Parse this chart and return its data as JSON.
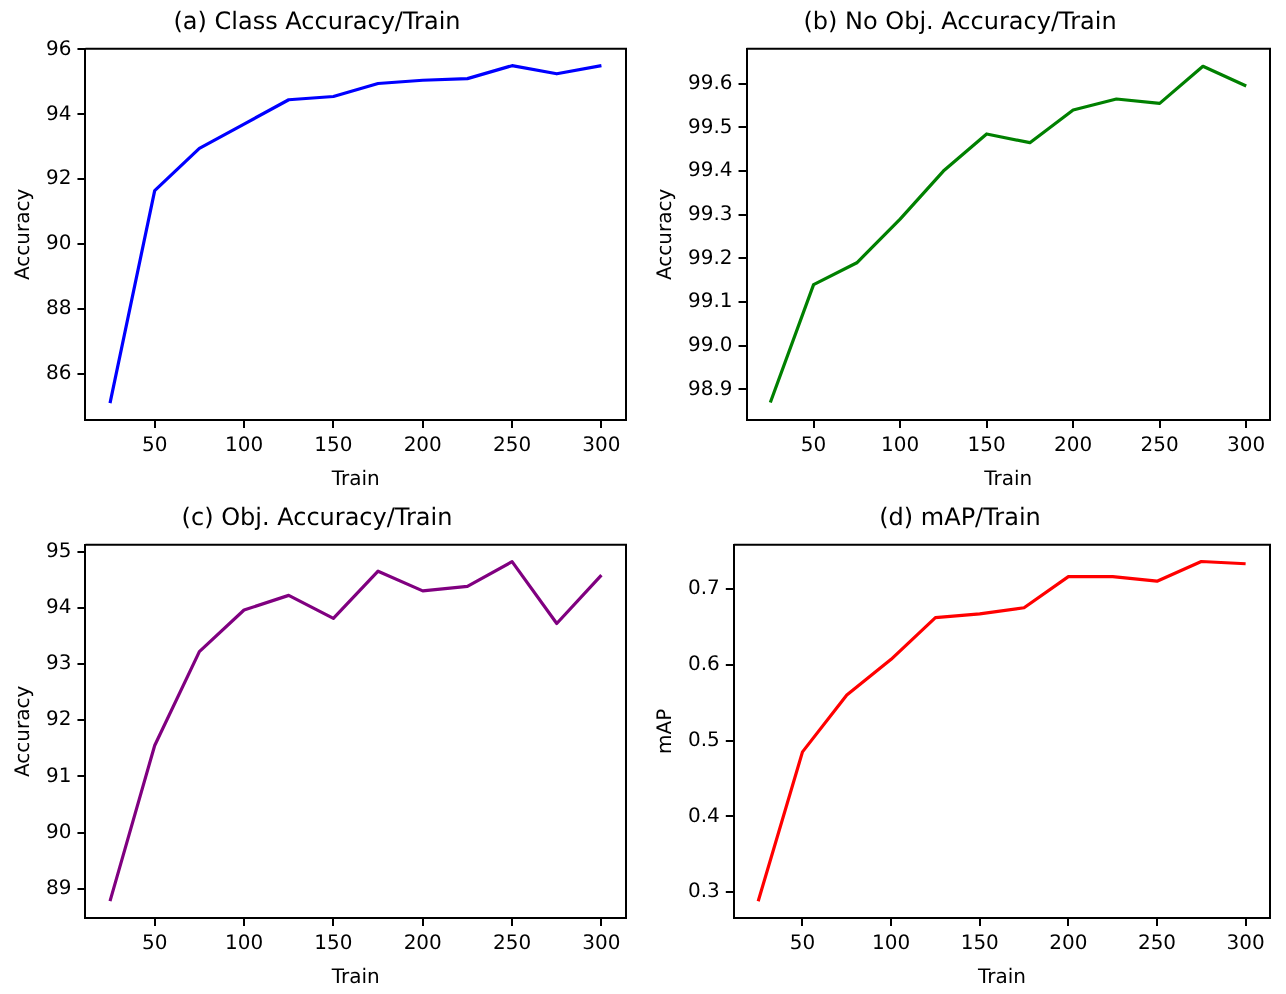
{
  "chart_data": [
    {
      "type": "line",
      "title": "(a) Class Accuracy/Train",
      "xlabel": "Train",
      "ylabel": "Accuracy",
      "x": [
        25,
        50,
        75,
        100,
        125,
        150,
        175,
        200,
        225,
        250,
        275,
        300
      ],
      "series": [
        {
          "color": "#0000ff",
          "values": [
            85.1,
            91.65,
            92.95,
            93.7,
            94.45,
            94.55,
            94.95,
            95.05,
            95.1,
            95.5,
            95.25,
            95.5
          ]
        }
      ],
      "xlim": [
        11.25,
        313.75
      ],
      "xticks": [
        50,
        100,
        150,
        200,
        250,
        300
      ],
      "ylim": [
        84.58,
        96.02
      ],
      "yticks": [
        86,
        88,
        90,
        92,
        94,
        96
      ],
      "grid": false,
      "legend": false,
      "marker": "none",
      "line_style": "solid"
    },
    {
      "type": "line",
      "title": "(b) No Obj. Accuracy/Train",
      "xlabel": "Train",
      "ylabel": "Accuracy",
      "x": [
        25,
        50,
        75,
        100,
        125,
        150,
        175,
        200,
        225,
        250,
        275,
        300
      ],
      "series": [
        {
          "color": "#008000",
          "values": [
            98.87,
            99.14,
            99.19,
            99.29,
            99.4,
            99.485,
            99.465,
            99.54,
            99.565,
            99.555,
            99.64,
            99.595
          ]
        }
      ],
      "xlim": [
        11.25,
        313.75
      ],
      "xticks": [
        50,
        100,
        150,
        200,
        250,
        300
      ],
      "ylim": [
        98.83,
        99.68
      ],
      "yticks": [
        98.9,
        {
          "value": 99,
          "label": "99.0"
        },
        99.1,
        99.2,
        99.3,
        99.4,
        99.5,
        99.6
      ],
      "grid": false,
      "legend": false,
      "marker": "none",
      "line_style": "solid"
    },
    {
      "type": "line",
      "title": "(c) Obj. Accuracy/Train",
      "xlabel": "Train",
      "ylabel": "Accuracy",
      "x": [
        25,
        50,
        75,
        100,
        125,
        150,
        175,
        200,
        225,
        250,
        275,
        300
      ],
      "series": [
        {
          "color": "#800080",
          "values": [
            88.78,
            91.55,
            93.22,
            93.96,
            94.22,
            93.81,
            94.65,
            94.3,
            94.38,
            94.82,
            93.72,
            94.58
          ]
        }
      ],
      "xlim": [
        11.25,
        313.75
      ],
      "xticks": [
        50,
        100,
        150,
        200,
        250,
        300
      ],
      "ylim": [
        88.48,
        95.12
      ],
      "yticks": [
        89,
        90,
        91,
        92,
        93,
        94,
        95
      ],
      "grid": false,
      "legend": false,
      "marker": "none",
      "line_style": "solid"
    },
    {
      "type": "line",
      "title": "(d) mAP/Train",
      "xlabel": "Train",
      "ylabel": "mAP",
      "x": [
        25,
        50,
        75,
        100,
        125,
        150,
        175,
        200,
        225,
        250,
        275,
        300
      ],
      "series": [
        {
          "color": "#ff0000",
          "values": [
            0.288,
            0.485,
            0.56,
            0.607,
            0.662,
            0.667,
            0.675,
            0.716,
            0.716,
            0.71,
            0.736,
            0.733
          ]
        }
      ],
      "xlim": [
        11.25,
        313.75
      ],
      "xticks": [
        50,
        100,
        150,
        200,
        250,
        300
      ],
      "ylim": [
        0.266,
        0.758
      ],
      "yticks": [
        0.3,
        0.4,
        0.5,
        0.6,
        0.7
      ],
      "grid": false,
      "legend": false,
      "marker": "none",
      "line_style": "solid"
    }
  ]
}
